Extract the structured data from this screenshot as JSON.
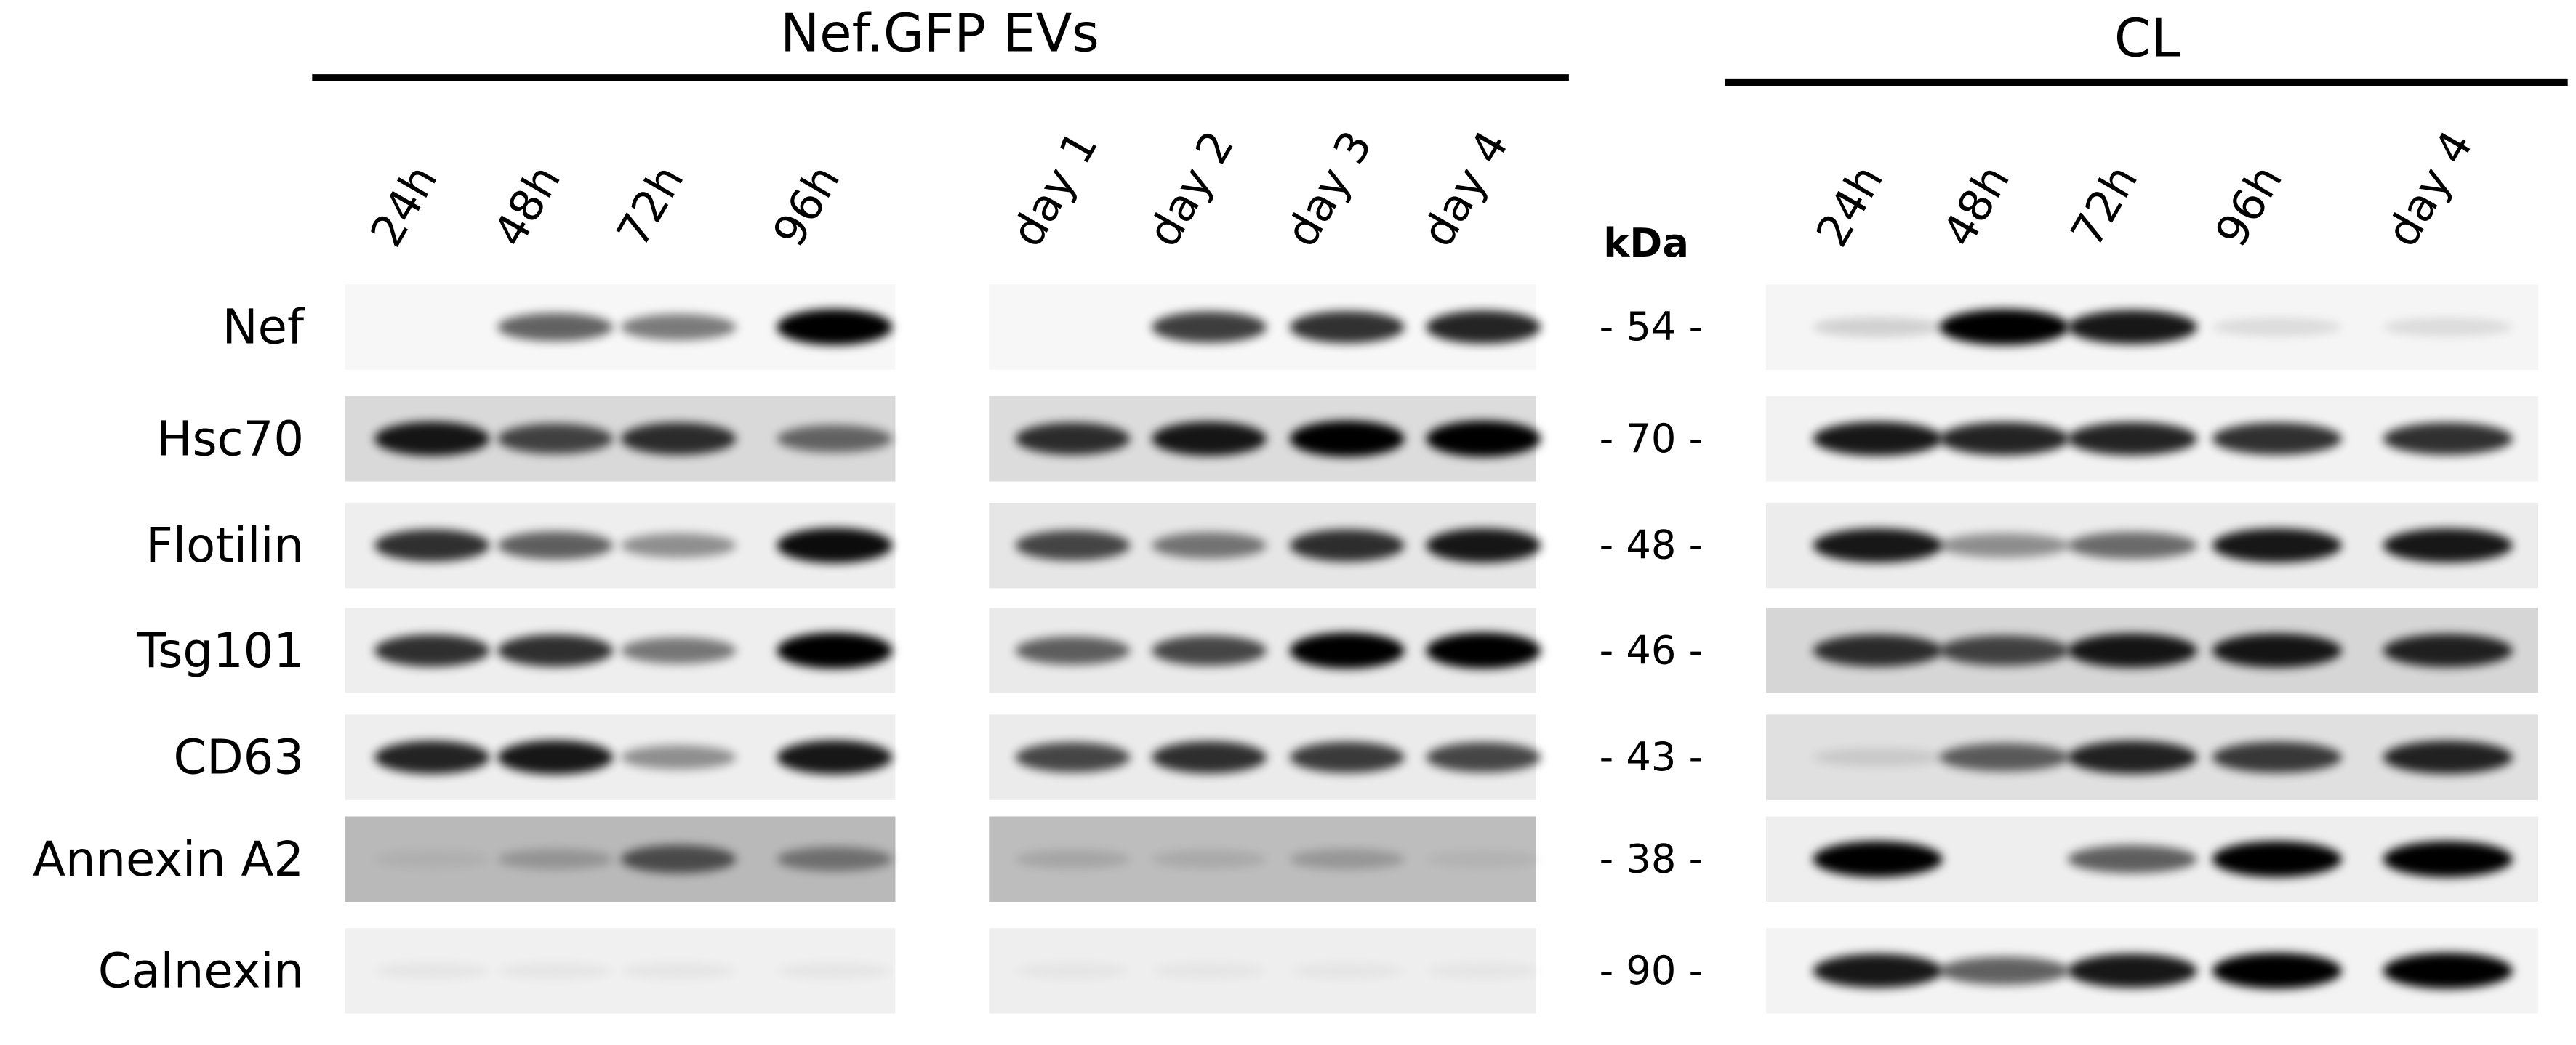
{
  "headers": {
    "left": "Nef.GFP EVs",
    "right": "CL",
    "kda": "kDa"
  },
  "lanes": [
    {
      "labels": [
        "24h",
        "48h",
        "72h",
        "96h"
      ]
    },
    {
      "labels": [
        "day 1",
        "day 2",
        "day 3",
        "day 4"
      ]
    },
    {
      "labels": [
        "24h",
        "48h",
        "72h",
        "96h",
        "day 4"
      ]
    }
  ],
  "rows": [
    {
      "name": "Nef",
      "marker": "- 54 -"
    },
    {
      "name": "Hsc70",
      "marker": "- 70 -"
    },
    {
      "name": "Flotilin",
      "marker": "- 48 -"
    },
    {
      "name": "Tsg101",
      "marker": "- 46 -"
    },
    {
      "name": "CD63",
      "marker": "- 43 -"
    },
    {
      "name": "Annexin A2",
      "marker": "- 38 -"
    },
    {
      "name": "Calnexin",
      "marker": "- 90 -"
    }
  ]
}
